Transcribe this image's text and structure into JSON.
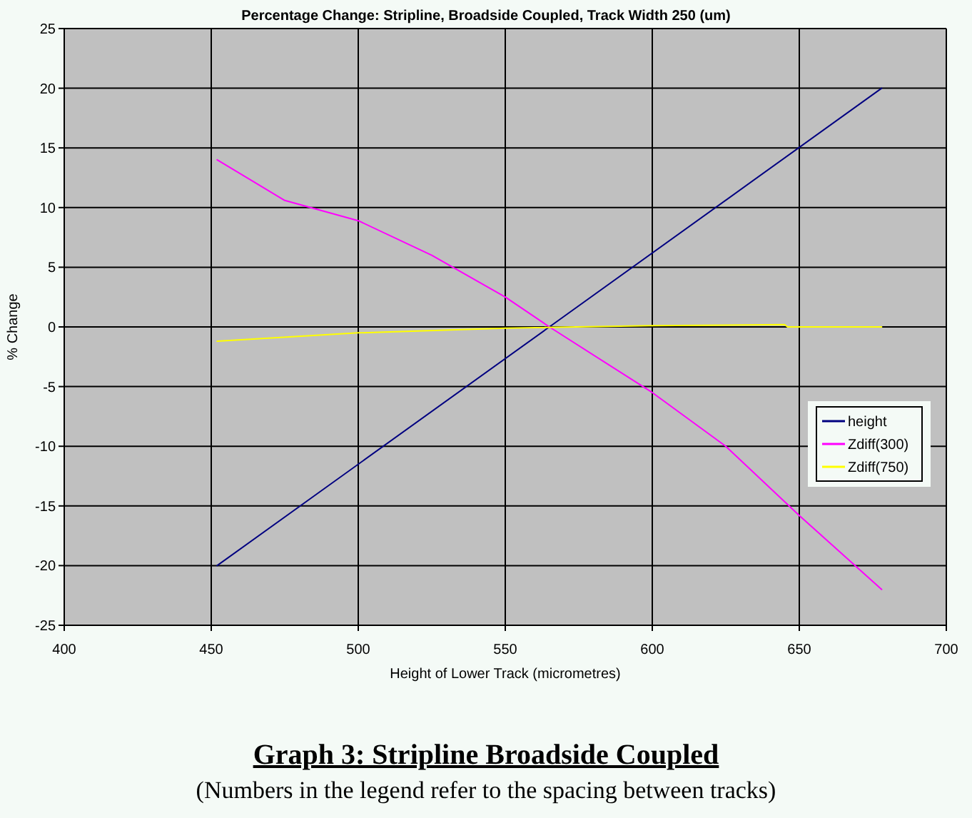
{
  "chart_data": {
    "type": "line",
    "title": "Percentage Change: Stripline, Broadside Coupled, Track Width 250 (um)",
    "xlabel": "Height of Lower Track (micrometres)",
    "ylabel": "% Change",
    "annotations": [
      "Graph 3: Stripline Broadside Coupled",
      "(Numbers in the legend refer to the spacing between tracks)"
    ],
    "series": [
      {
        "name": "height",
        "color": "#000080",
        "x": [
          452,
          565,
          678
        ],
        "values": [
          -20,
          0,
          20
        ]
      },
      {
        "name": "Zdiff(300)",
        "color": "#ff00ff",
        "x": [
          452,
          475,
          500,
          525,
          550,
          565,
          600,
          625,
          650,
          678
        ],
        "values": [
          14,
          10.6,
          8.9,
          6,
          2.5,
          0,
          -5.5,
          -10,
          -15.8,
          -22
        ]
      },
      {
        "name": "Zdiff(750)",
        "color": "#ffff00",
        "x": [
          452,
          500,
          550,
          600,
          645,
          646,
          678
        ],
        "values": [
          -1.2,
          -0.5,
          -0.1,
          0.1,
          0.2,
          0,
          0
        ]
      }
    ],
    "xlim": [
      400,
      700
    ],
    "xticks": [
      400,
      450,
      500,
      550,
      600,
      650,
      700
    ],
    "ylim": [
      -25,
      25
    ],
    "yticks": [
      -25,
      -20,
      -15,
      -10,
      -5,
      0,
      5,
      10,
      15,
      20,
      25
    ],
    "grid": true,
    "legend": "right",
    "marker": "none",
    "line_style": "solid"
  }
}
